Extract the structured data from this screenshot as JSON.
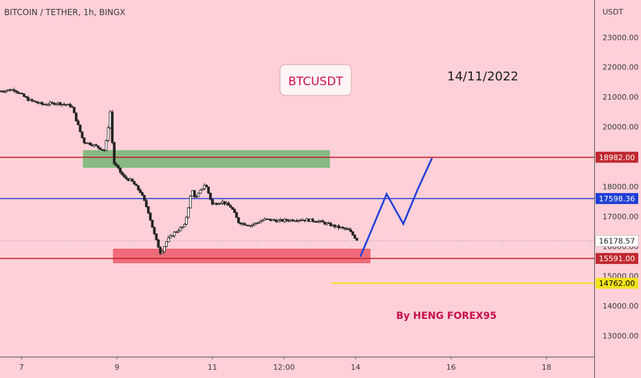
{
  "header": {
    "symbol_label": "BITCOIN / TETHER, 1h, BINGX"
  },
  "colors": {
    "background": "#ffd0d8",
    "resistance": "#c0282f",
    "pivot": "#1f3fd6",
    "target": "#f2e21c",
    "supply_zone": "#7ab87a",
    "demand_zone": "#f06070",
    "projection": "#1f3fd6",
    "candles": "#222222",
    "annotation": "#c8104a"
  },
  "annotations": {
    "symbol_box": "BTCUSDT",
    "date": "14/11/2022",
    "author": "By HENG FOREX95"
  },
  "chart_data": {
    "type": "line",
    "title": "",
    "y_unit": "USDT",
    "x_ticks": [
      "7",
      "9",
      "11",
      "12:00",
      "14",
      "16",
      "18"
    ],
    "y_ticks": [
      13000,
      14000,
      15000,
      16000,
      17000,
      18000,
      19000,
      20000,
      21000,
      22000,
      23000
    ],
    "y_tick_labels": [
      "13000.00",
      "14000.00",
      "15000.00",
      "16000.00",
      "17000.00",
      "18000.00",
      "19000.00",
      "20000.00",
      "21000.00",
      "22000.00",
      "23000.00"
    ],
    "ylim": [
      12300,
      24250
    ],
    "xlim": [
      6.55,
      19.0
    ],
    "grid": false,
    "price": {
      "x": [
        6.55,
        6.85,
        7.15,
        7.45,
        7.75,
        8.05,
        8.3,
        8.5,
        8.75,
        8.86,
        8.93,
        9.02,
        9.15,
        9.3,
        9.5,
        9.65,
        9.8,
        9.92,
        10.05,
        10.2,
        10.42,
        10.57,
        10.65,
        10.85,
        11.0,
        11.2,
        11.4,
        11.55,
        11.8,
        12.1,
        12.4,
        12.8,
        13.2,
        13.6,
        13.85,
        14.05
      ],
      "y": [
        21200,
        21250,
        20900,
        20750,
        20800,
        20700,
        19500,
        19400,
        19200,
        20500,
        18800,
        18600,
        18300,
        18200,
        17800,
        17200,
        16300,
        15750,
        16200,
        16450,
        16700,
        17900,
        17600,
        18100,
        17400,
        17500,
        17300,
        16800,
        16700,
        16900,
        16850,
        16900,
        16850,
        16650,
        16550,
        16178.57
      ]
    },
    "price_lines": [
      {
        "name": "resistance",
        "value": 18982.0,
        "label": "18982.00"
      },
      {
        "name": "pivot",
        "value": 17598.36,
        "label": "17598.36"
      },
      {
        "name": "support",
        "value": 15591.0,
        "label": "15591.00"
      },
      {
        "name": "target",
        "value": 14762.0,
        "label": "14762.00"
      }
    ],
    "last_price": {
      "value": 16178.57,
      "label": "16178.57"
    },
    "zones": [
      {
        "name": "supply-zone",
        "x0": 8.3,
        "x1": 13.45,
        "y0": 18650,
        "y1": 19200
      },
      {
        "name": "demand-zone",
        "x0": 8.93,
        "x1": 14.3,
        "y0": 15450,
        "y1": 15900
      }
    ],
    "projection": {
      "x": [
        14.1,
        14.65,
        15.0,
        15.3,
        15.6
      ],
      "y": [
        15650,
        17750,
        16750,
        17900,
        18950
      ]
    }
  }
}
